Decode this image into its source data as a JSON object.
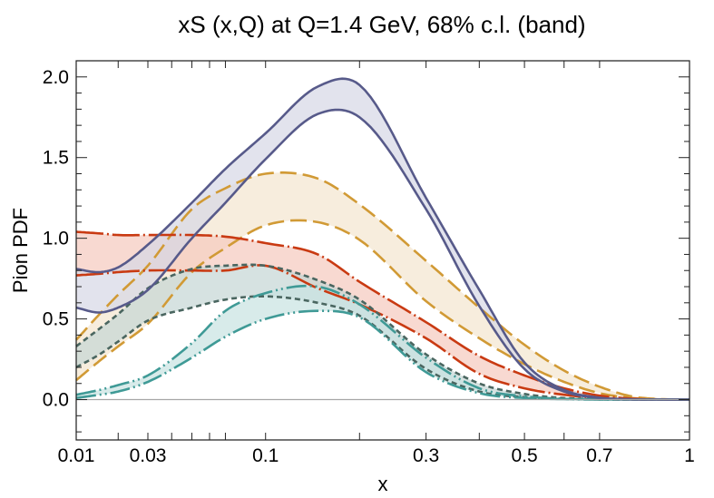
{
  "chart_data": {
    "type": "area",
    "title": "xS (x,Q) at Q=1.4 GeV, 68% c.l. (band)",
    "xlabel": "x",
    "ylabel": "Pion PDF",
    "xscale": "power-0.35",
    "xlim": [
      0.01,
      1.0
    ],
    "ylim": [
      -0.25,
      2.1
    ],
    "grid": false,
    "legend": "none",
    "x_ticks": [
      {
        "value": 0.01,
        "label": "0.01"
      },
      {
        "value": 0.02,
        "label": ""
      },
      {
        "value": 0.03,
        "label": "0.03"
      },
      {
        "value": 0.04,
        "label": ""
      },
      {
        "value": 0.05,
        "label": ""
      },
      {
        "value": 0.06,
        "label": ""
      },
      {
        "value": 0.07,
        "label": ""
      },
      {
        "value": 0.1,
        "label": "0.1"
      },
      {
        "value": 0.2,
        "label": ""
      },
      {
        "value": 0.3,
        "label": "0.3"
      },
      {
        "value": 0.4,
        "label": ""
      },
      {
        "value": 0.5,
        "label": "0.5"
      },
      {
        "value": 0.6,
        "label": ""
      },
      {
        "value": 0.7,
        "label": "0.7"
      },
      {
        "value": 1.0,
        "label": "1"
      }
    ],
    "y_ticks": [
      {
        "value": 0.0,
        "label": "0.0"
      },
      {
        "value": 0.5,
        "label": "0.5"
      },
      {
        "value": 1.0,
        "label": "1.0"
      },
      {
        "value": 1.5,
        "label": "1.5"
      },
      {
        "value": 2.0,
        "label": "2.0"
      }
    ],
    "x": [
      0.01,
      0.015,
      0.02,
      0.03,
      0.05,
      0.07,
      0.1,
      0.15,
      0.2,
      0.3,
      0.4,
      0.5,
      0.6,
      0.7,
      0.8,
      0.9,
      1.0
    ],
    "series": [
      {
        "name": "band-gold",
        "color": "#d19a35",
        "fill": "#f3e6cf",
        "dash": "18 7",
        "upper": [
          0.37,
          0.53,
          0.65,
          0.83,
          1.18,
          1.31,
          1.4,
          1.37,
          1.21,
          0.86,
          0.57,
          0.34,
          0.18,
          0.08,
          0.02,
          0.003,
          0.0
        ],
        "lower": [
          0.12,
          0.24,
          0.33,
          0.47,
          0.79,
          0.94,
          1.08,
          1.1,
          0.99,
          0.61,
          0.38,
          0.22,
          0.11,
          0.04,
          0.01,
          0.001,
          0.0
        ]
      },
      {
        "name": "band-red",
        "color": "#c93a12",
        "fill": "#f5c9bd",
        "dash": "30 4 2 4",
        "upper": [
          1.04,
          1.03,
          1.02,
          1.02,
          1.02,
          1.01,
          0.97,
          0.9,
          0.73,
          0.48,
          0.27,
          0.15,
          0.07,
          0.025,
          0.006,
          0.001,
          0.0
        ],
        "lower": [
          0.77,
          0.78,
          0.79,
          0.8,
          0.8,
          0.8,
          0.83,
          0.69,
          0.59,
          0.38,
          0.16,
          0.07,
          0.03,
          0.01,
          0.002,
          0.0,
          0.0
        ]
      },
      {
        "name": "band-gray",
        "color": "#4a6660",
        "fill": "#c5d6d4",
        "dash": "6 4",
        "upper": [
          0.33,
          0.44,
          0.53,
          0.69,
          0.81,
          0.83,
          0.83,
          0.74,
          0.62,
          0.28,
          0.1,
          0.035,
          0.01,
          0.003,
          0.0,
          0.0,
          0.0
        ],
        "lower": [
          0.2,
          0.28,
          0.36,
          0.49,
          0.57,
          0.62,
          0.64,
          0.6,
          0.52,
          0.19,
          0.05,
          0.015,
          0.005,
          0.001,
          0.0,
          0.0,
          0.0
        ]
      },
      {
        "name": "band-teal",
        "color": "#3f9a96",
        "fill": "#c7e3e1",
        "dash": "22 4 2 4 2 4",
        "upper": [
          0.03,
          0.06,
          0.09,
          0.15,
          0.35,
          0.55,
          0.66,
          0.7,
          0.59,
          0.26,
          0.07,
          0.02,
          0.005,
          0.001,
          0.0,
          0.0,
          0.0
        ],
        "lower": [
          0.01,
          0.03,
          0.05,
          0.11,
          0.26,
          0.39,
          0.5,
          0.55,
          0.51,
          0.17,
          0.04,
          0.01,
          0.003,
          0.0,
          0.0,
          0.0,
          0.0
        ]
      },
      {
        "name": "band-purple",
        "color": "#575a8a",
        "fill": "#d6d7e5",
        "dash": "",
        "upper": [
          0.81,
          0.79,
          0.82,
          0.96,
          1.22,
          1.43,
          1.65,
          1.94,
          1.95,
          1.25,
          0.68,
          0.23,
          0.06,
          0.012,
          0.002,
          0.0,
          0.0
        ],
        "lower": [
          0.57,
          0.54,
          0.57,
          0.68,
          1.0,
          1.22,
          1.49,
          1.77,
          1.75,
          1.18,
          0.58,
          0.19,
          0.05,
          0.01,
          0.001,
          0.0,
          0.0
        ]
      }
    ]
  }
}
